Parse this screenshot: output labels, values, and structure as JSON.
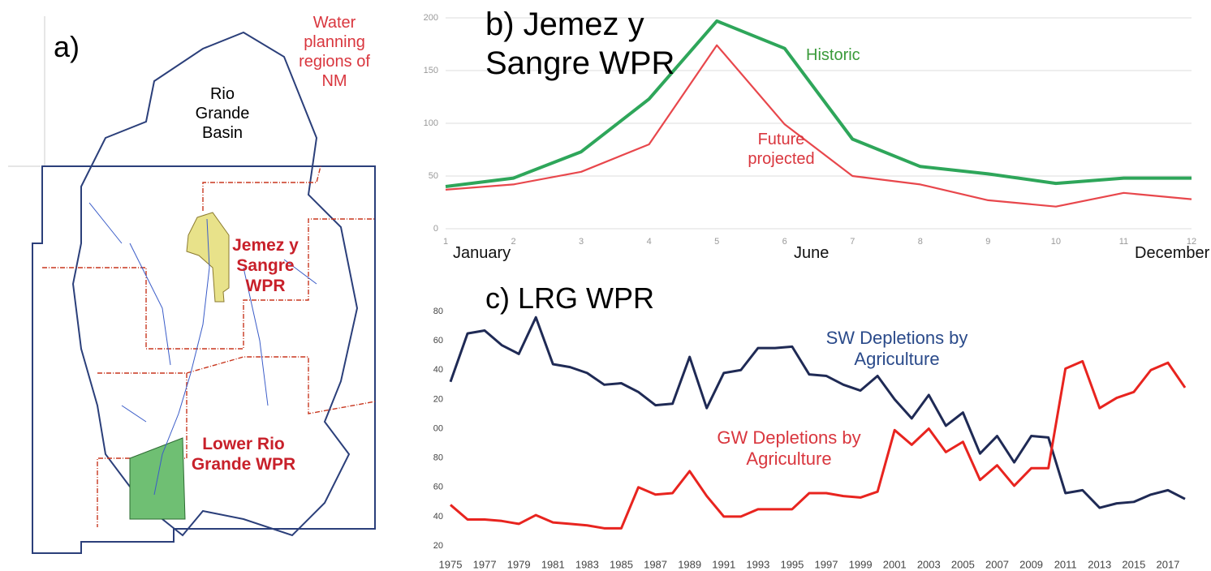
{
  "map": {
    "panel_label": "a)",
    "labels": [
      "Rio Grande Basin",
      "Water planning regions of NM",
      "Jemez y Sangre WPR",
      "Lower Rio Grande WPR"
    ]
  },
  "chart_data": [
    {
      "type": "line",
      "title": "b) Jemez y Sangre WPR",
      "x": [
        1,
        2,
        3,
        4,
        5,
        6,
        7,
        8,
        9,
        10,
        11,
        12
      ],
      "xlim": [
        1,
        12
      ],
      "xticks": [
        1,
        2,
        3,
        4,
        5,
        6,
        7,
        8,
        9,
        10,
        11,
        12
      ],
      "ylim": [
        0,
        200
      ],
      "yticks": [
        0,
        50,
        100,
        150,
        200
      ],
      "grid": true,
      "annotations": [
        "January",
        "June",
        "December"
      ],
      "series": [
        {
          "name": "Historic",
          "color": "#2ea65a",
          "values": [
            40,
            48,
            73,
            123,
            197,
            171,
            85,
            59,
            52,
            43,
            48,
            48
          ]
        },
        {
          "name": "Future projected",
          "color": "#e8474c",
          "values": [
            37,
            42,
            54,
            80,
            174,
            99,
            50,
            42,
            27,
            21,
            34,
            28
          ]
        }
      ]
    },
    {
      "type": "line",
      "title": "c) LRG WPR",
      "x": [
        1975,
        1976,
        1977,
        1978,
        1979,
        1980,
        1981,
        1982,
        1983,
        1984,
        1985,
        1986,
        1987,
        1988,
        1989,
        1990,
        1991,
        1992,
        1993,
        1994,
        1995,
        1996,
        1997,
        1998,
        1999,
        2000,
        2001,
        2002,
        2003,
        2004,
        2005,
        2006,
        2007,
        2008,
        2009,
        2010,
        2011,
        2012,
        2013,
        2014,
        2015,
        2016,
        2017,
        2018
      ],
      "xlim": [
        1975,
        2018
      ],
      "xticks": [
        1975,
        1977,
        1979,
        1981,
        1983,
        1985,
        1987,
        1989,
        1991,
        1993,
        1995,
        1997,
        1999,
        2001,
        2003,
        2005,
        2007,
        2009,
        2011,
        2013,
        2015,
        2017
      ],
      "ylim": [
        20,
        180
      ],
      "yticks": [
        20,
        40,
        60,
        80,
        {
          "value": 100,
          "label": "00"
        },
        {
          "value": 120,
          "label": "20"
        },
        {
          "value": 140,
          "label": "40"
        },
        {
          "value": 160,
          "label": "60"
        },
        {
          "value": 180,
          "label": "80"
        }
      ],
      "grid": false,
      "series": [
        {
          "name": "SW Depletions by Agriculture",
          "color": "#1f2a55",
          "values": [
            132,
            165,
            167,
            157,
            151,
            176,
            144,
            142,
            138,
            130,
            131,
            125,
            116,
            117,
            149,
            114,
            138,
            140,
            155,
            155,
            156,
            137,
            136,
            130,
            126,
            136,
            120,
            107,
            123,
            102,
            111,
            83,
            95,
            77,
            95,
            94,
            56,
            58,
            46,
            49,
            50,
            55,
            58,
            52
          ]
        },
        {
          "name": "GW Depletions by Agriculture",
          "color": "#e8241f",
          "values": [
            48,
            38,
            38,
            37,
            35,
            41,
            36,
            35,
            34,
            32,
            32,
            60,
            55,
            56,
            71,
            54,
            40,
            40,
            45,
            45,
            45,
            56,
            56,
            54,
            53,
            57,
            99,
            89,
            100,
            84,
            91,
            65,
            75,
            61,
            73,
            73,
            141,
            146,
            114,
            121,
            125,
            140,
            145,
            128
          ]
        }
      ]
    }
  ]
}
